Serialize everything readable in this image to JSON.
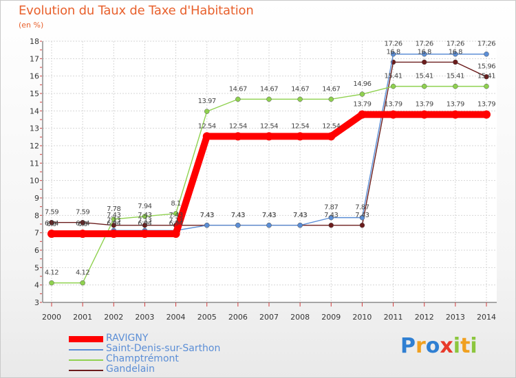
{
  "chart_data": {
    "type": "line",
    "title": "Evolution du Taux de Taxe d'Habitation",
    "subtitle": "(en %)",
    "x": [
      "2000",
      "2001",
      "2002",
      "2003",
      "2004",
      "2005",
      "2006",
      "2007",
      "2008",
      "2009",
      "2010",
      "2011",
      "2012",
      "2013",
      "2014"
    ],
    "ylim": [
      3,
      18
    ],
    "yticks": [
      3,
      4,
      5,
      6,
      7,
      8,
      9,
      10,
      11,
      12,
      13,
      14,
      15,
      16,
      17,
      18
    ],
    "grid": true,
    "legend_position": "bottom-left",
    "series": [
      {
        "name": "Gandelain",
        "color": "#6b1c1c",
        "values": [
          7.59,
          7.59,
          7.43,
          7.43,
          7.43,
          7.43,
          7.43,
          7.43,
          7.43,
          7.43,
          7.43,
          16.8,
          16.8,
          16.8,
          15.96
        ],
        "labels": [
          "7.59",
          "7.59",
          "7.43",
          "7.43",
          "7.43",
          "7.43",
          "7.43",
          "7.43",
          "7.43",
          "7.43",
          "7.43",
          "16.8",
          "16.8",
          "16.8",
          "15.96"
        ]
      },
      {
        "name": "Saint-Denis-sur-Sarthon",
        "color": "#5b8ed6",
        "values": [
          6.9,
          6.9,
          7.13,
          7.13,
          7.13,
          7.43,
          7.43,
          7.43,
          7.43,
          7.87,
          7.87,
          17.26,
          17.26,
          17.26,
          17.26
        ],
        "labels": [
          "6.9",
          "6.9",
          "7.13",
          "7.13",
          "7.13",
          "7.43",
          "7.43",
          "7.43",
          "7.43",
          "7.87",
          "7.87",
          "17.26",
          "17.26",
          "17.26",
          "17.26"
        ]
      },
      {
        "name": "Champtrémont",
        "color": "#8fd14f",
        "values": [
          4.12,
          4.12,
          7.78,
          7.94,
          8.1,
          13.97,
          14.67,
          14.67,
          14.67,
          14.67,
          14.96,
          15.41,
          15.41,
          15.41,
          15.41
        ],
        "labels": [
          "4.12",
          "4.12",
          "7.78",
          "7.94",
          "8.1",
          "13.97",
          "14.67",
          "14.67",
          "14.67",
          "14.67",
          "14.96",
          "15.41",
          "15.41",
          "15.41",
          "15.41"
        ]
      },
      {
        "name": "RAVIGNY",
        "color": "#ff0000",
        "values": [
          6.94,
          6.94,
          6.94,
          6.94,
          6.94,
          12.54,
          12.54,
          12.54,
          12.54,
          12.54,
          13.79,
          13.79,
          13.79,
          13.79,
          13.79
        ],
        "labels": [
          "6.94",
          "6.94",
          "6.94",
          "6.94",
          "6.94",
          "12.54",
          "12.54",
          "12.54",
          "12.54",
          "12.54",
          "13.79",
          "13.79",
          "13.79",
          "13.79",
          "13.79"
        ]
      }
    ],
    "legend": [
      {
        "name": "RAVIGNY",
        "color": "#ff0000",
        "thick": true
      },
      {
        "name": "Saint-Denis-sur-Sarthon",
        "color": "#5b8ed6",
        "thick": false
      },
      {
        "name": "Champtrémont",
        "color": "#8fd14f",
        "thick": false
      },
      {
        "name": "Gandelain",
        "color": "#6b1c1c",
        "thick": false
      }
    ]
  },
  "logo": {
    "letters": [
      {
        "ch": "P",
        "color": "#2f7fd2"
      },
      {
        "ch": "r",
        "color": "#f0a020"
      },
      {
        "ch": "o",
        "color": "#2f7fd2"
      },
      {
        "ch": "x",
        "color": "#e83a2a"
      },
      {
        "ch": "i",
        "color": "#8cc63e"
      },
      {
        "ch": "t",
        "color": "#f0a020"
      },
      {
        "ch": "i",
        "color": "#8cc63e"
      }
    ]
  }
}
